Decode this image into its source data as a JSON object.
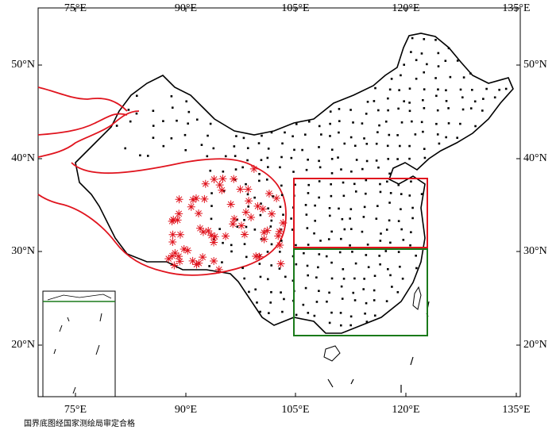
{
  "map": {
    "lon_labels": [
      "75°E",
      "90°E",
      "105°E",
      "120°E",
      "135°E"
    ],
    "lat_labels": [
      "50°N",
      "40°N",
      "30°N",
      "20°N"
    ]
  },
  "footer": "国界底图经国家测绘局审定合格"
}
